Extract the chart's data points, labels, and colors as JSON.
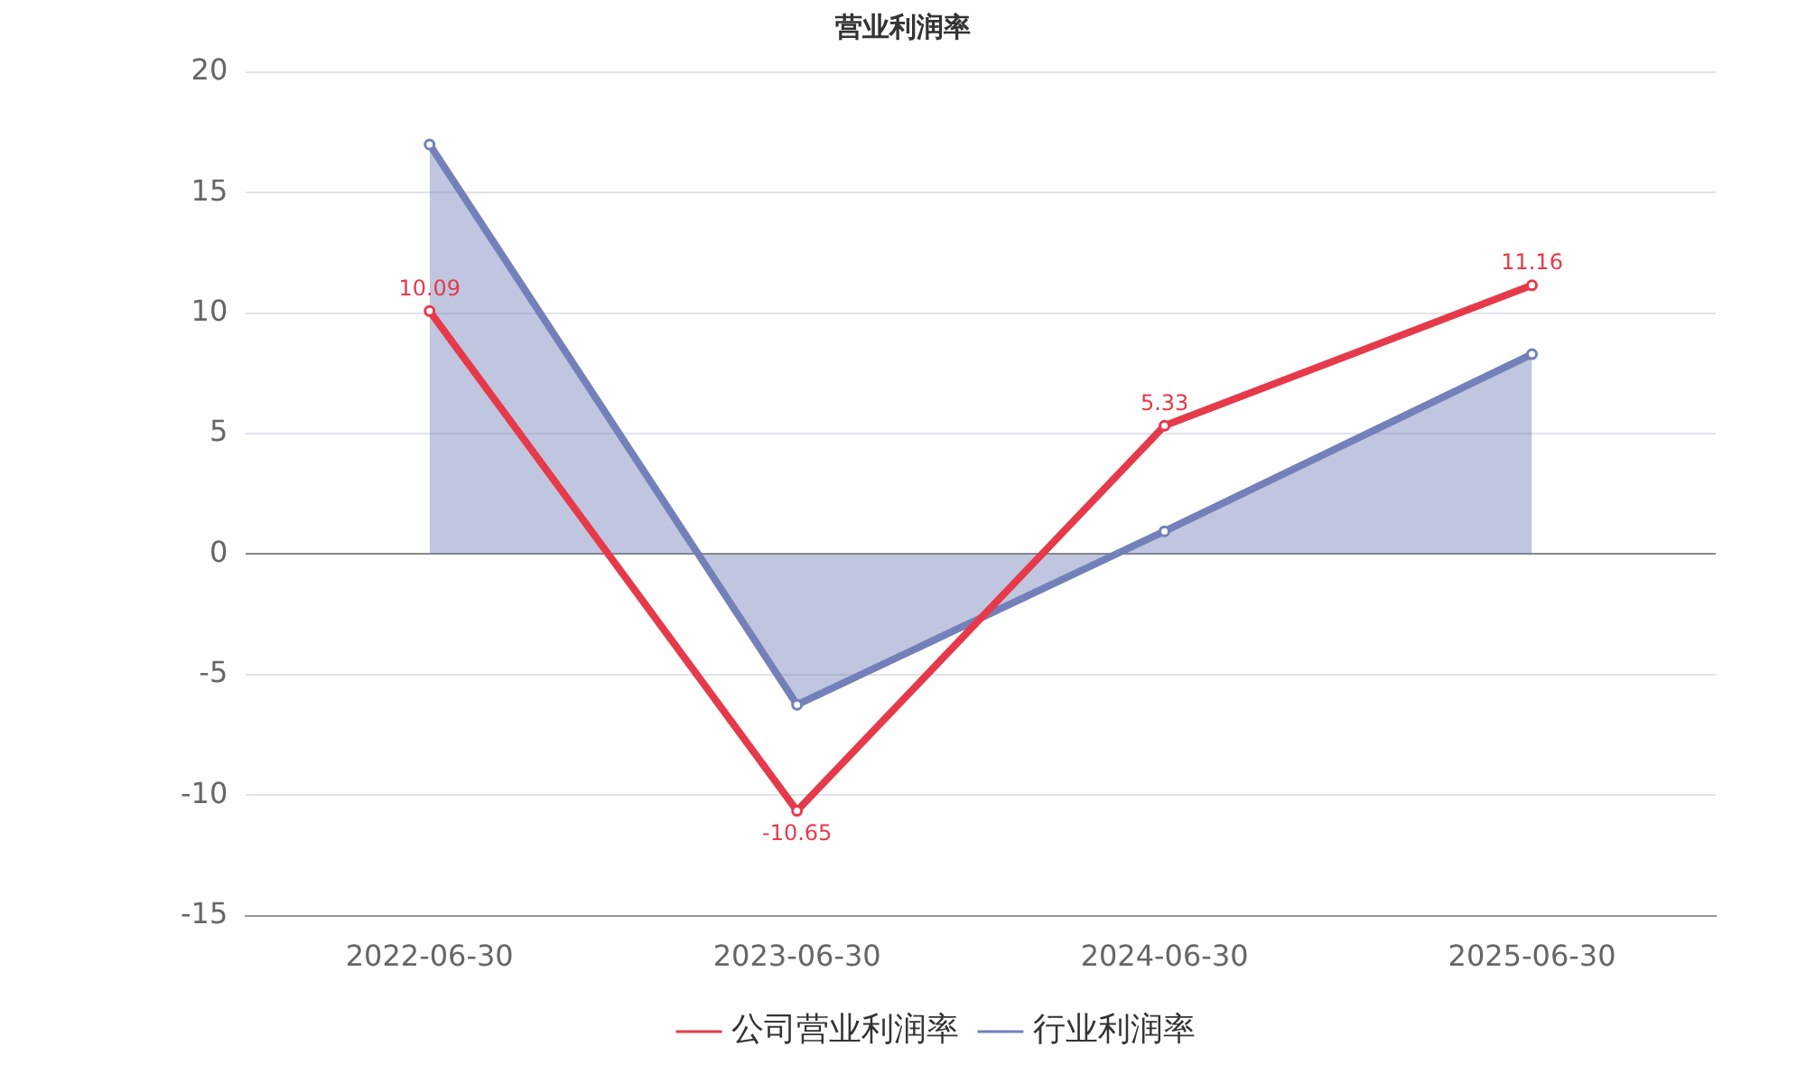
{
  "chart_data": {
    "type": "line",
    "title": "营业利润率",
    "categories": [
      "2022-06-30",
      "2023-06-30",
      "2024-06-30",
      "2025-06-30"
    ],
    "series": [
      {
        "name": "公司营业利润率",
        "color": "#e63a4b",
        "values": [
          10.09,
          -10.65,
          5.33,
          11.16
        ],
        "value_labels": [
          "10.09",
          "-10.65",
          "5.33",
          "11.16"
        ]
      },
      {
        "name": "行业利润率",
        "type": "area",
        "color": "#7480b9",
        "values": [
          17.0,
          -6.25,
          0.95,
          8.3
        ]
      }
    ],
    "ylim": [
      -15,
      20
    ],
    "yticks": [
      -15,
      -10,
      -5,
      0,
      5,
      10,
      15,
      20
    ],
    "grid": "y",
    "legend": "bottom",
    "marker": "circle",
    "line_style": "solid"
  }
}
